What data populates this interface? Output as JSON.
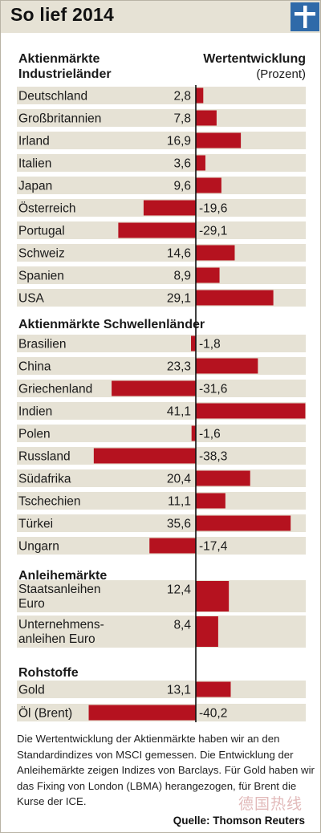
{
  "title": "So lief 2014",
  "header": {
    "left": [
      "Aktienmärkte",
      "Industrieländer"
    ],
    "right": "Wertentwicklung",
    "unit": "(Prozent)"
  },
  "colors": {
    "bar": "#b5121f",
    "row_bg": "#e6e2d5",
    "logo": "#2f6aa9"
  },
  "chart_data": {
    "type": "bar",
    "orientation": "horizontal",
    "ylabel": "Wertentwicklung (Prozent)",
    "groups": [
      {
        "name": "Aktienmärkte Industrieländer",
        "categories": [
          [
            "Deutschland"
          ],
          [
            "Großbritannien"
          ],
          [
            "Irland"
          ],
          [
            "Italien"
          ],
          [
            "Japan"
          ],
          [
            "Österreich"
          ],
          [
            "Portugal"
          ],
          [
            "Schweiz"
          ],
          [
            "Spanien"
          ],
          [
            "USA"
          ]
        ],
        "values": [
          2.8,
          7.8,
          16.9,
          3.6,
          9.6,
          -19.6,
          -29.1,
          14.6,
          8.9,
          29.1
        ]
      },
      {
        "name": "Aktienmärkte Schwellenländer",
        "categories": [
          [
            "Brasilien"
          ],
          [
            "China"
          ],
          [
            "Griechenland"
          ],
          [
            "Indien"
          ],
          [
            "Polen"
          ],
          [
            "Russland"
          ],
          [
            "Südafrika"
          ],
          [
            "Tschechien"
          ],
          [
            "Türkei"
          ],
          [
            "Ungarn"
          ]
        ],
        "values": [
          -1.8,
          23.3,
          -31.6,
          41.1,
          -1.6,
          -38.3,
          20.4,
          11.1,
          35.6,
          -17.4
        ]
      },
      {
        "name": "Anleihemärkte",
        "categories": [
          [
            "Staatsanleihen",
            "Euro"
          ],
          [
            "Unternehmens-",
            "anleihen Euro"
          ]
        ],
        "values": [
          12.4,
          8.4
        ]
      },
      {
        "name": "Rohstoffe",
        "categories": [
          [
            "Gold"
          ],
          [
            "Öl (Brent)"
          ]
        ],
        "values": [
          13.1,
          -40.2
        ]
      }
    ]
  },
  "note": "Die Wertentwicklung der Aktienmärkte haben wir an den Standardindizes von MSCI gemessen. Die Entwicklung der Anleihemärkte zeigen Indizes von Barclays. Für Gold haben wir das Fixing von London (LBMA) herangezogen, für Brent die Kurse der ICE.",
  "source": "Quelle: Thomson Reuters",
  "watermark": "德国热线"
}
